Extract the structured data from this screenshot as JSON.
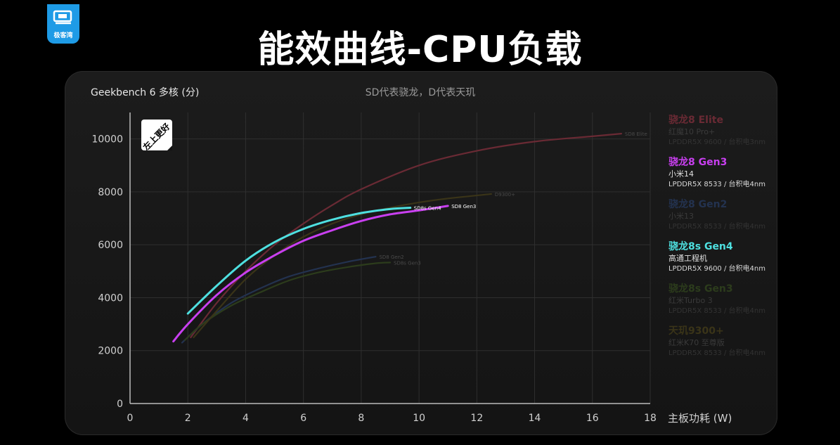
{
  "brand": {
    "logo_text": "极客湾",
    "color": "#1e9be6"
  },
  "page_title": "能效曲线-CPU负载",
  "chart_data": {
    "type": "line",
    "title": "Geekbench 6  多核 (分)",
    "subtitle": "SD代表骁龙，D代表天玑",
    "xlabel": "主板功耗 (W)",
    "ylabel": "Geekbench 6  多核 (分)",
    "xlim": [
      0,
      18
    ],
    "ylim": [
      0,
      11000
    ],
    "xticks": [
      0,
      2,
      4,
      6,
      8,
      10,
      12,
      14,
      16,
      18
    ],
    "yticks": [
      0,
      2000,
      4000,
      6000,
      8000,
      10000
    ],
    "grid": true,
    "legend_position": "right",
    "badge": "左上更好",
    "series": [
      {
        "name": "骁龙8 Elite",
        "device": "红魔10 Pro+",
        "memory": "LPDDR5X 9600 / 台积电3nm",
        "end_label": "SD8 Elite",
        "color": "#6a2a34",
        "highlight": false,
        "x": [
          2.1,
          3,
          4,
          5,
          6,
          7,
          8,
          10,
          12,
          14,
          16,
          17
        ],
        "y": [
          2500,
          3800,
          5000,
          6000,
          6800,
          7500,
          8100,
          9000,
          9550,
          9900,
          10100,
          10200
        ]
      },
      {
        "name": "骁龙8 Gen3",
        "device": "小米14",
        "memory": "LPDDR5X 8533 / 台积电4nm",
        "end_label": "SD8 Gen3",
        "color": "#c93ff0",
        "highlight": true,
        "x": [
          1.5,
          2,
          3,
          4,
          5,
          6,
          7,
          8,
          9,
          10,
          11
        ],
        "y": [
          2350,
          3000,
          4100,
          4950,
          5600,
          6150,
          6550,
          6900,
          7150,
          7300,
          7470
        ]
      },
      {
        "name": "骁龙8 Gen2",
        "device": "小米13",
        "memory": "LPDDR5X 8533 / 台积电4nm",
        "end_label": "SD8 Gen2",
        "color": "#23324f",
        "highlight": false,
        "x": [
          1.8,
          2.5,
          3.5,
          4.5,
          5.5,
          6.5,
          7.5,
          8.5
        ],
        "y": [
          2300,
          3000,
          3800,
          4350,
          4800,
          5100,
          5350,
          5550
        ]
      },
      {
        "name": "骁龙8s Gen4",
        "device": "高通工程机",
        "memory": "LPDDR5X 9600 / 台积电4nm",
        "end_label": "SD8s Gen4",
        "color": "#4ee0e0",
        "highlight": true,
        "x": [
          2,
          3,
          4,
          5,
          6,
          7,
          8,
          9,
          9.7
        ],
        "y": [
          3400,
          4450,
          5400,
          6100,
          6600,
          6950,
          7200,
          7350,
          7400
        ]
      },
      {
        "name": "骁龙8s Gen3",
        "device": "红米Turbo 3",
        "memory": "LPDDR5X 8533 / 台积电4nm",
        "end_label": "SD8s Gen3",
        "color": "#2c3c1c",
        "highlight": false,
        "x": [
          1.9,
          2.5,
          3.5,
          4.5,
          5.5,
          6.5,
          7.5,
          8.5,
          9
        ],
        "y": [
          2400,
          3000,
          3700,
          4200,
          4650,
          4950,
          5150,
          5300,
          5330
        ]
      },
      {
        "name": "天玑9300+",
        "device": "红米K70 至尊版",
        "memory": "LPDDR5X 8533 / 台积电4nm",
        "end_label": "D9300+",
        "color": "#3a3418",
        "highlight": false,
        "x": [
          2.2,
          3,
          4,
          5,
          6,
          7,
          8,
          9,
          10,
          11,
          12.5
        ],
        "y": [
          2500,
          3500,
          4700,
          5600,
          6300,
          6800,
          7150,
          7400,
          7600,
          7750,
          7920
        ]
      }
    ]
  }
}
